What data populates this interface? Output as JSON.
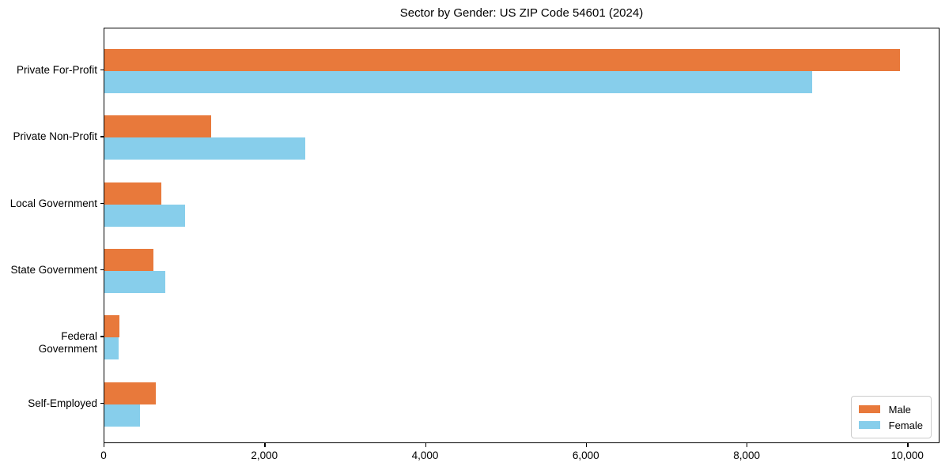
{
  "chart_data": {
    "type": "bar",
    "orientation": "horizontal",
    "title": "Sector by Gender: US ZIP Code 54601 (2024)",
    "categories": [
      "Private For-Profit",
      "Private Non-Profit",
      "Local Government",
      "State Government",
      "Federal Government",
      "Self-Employed"
    ],
    "series": [
      {
        "name": "Male",
        "color": "#e8793b",
        "values": [
          9900,
          1330,
          710,
          610,
          190,
          640
        ]
      },
      {
        "name": "Female",
        "color": "#87ceeb",
        "values": [
          8810,
          2500,
          1000,
          760,
          175,
          440
        ]
      }
    ],
    "xlabel": "",
    "ylabel": "",
    "xlim": [
      0,
      10400
    ],
    "x_ticks": [
      0,
      2000,
      4000,
      6000,
      8000,
      10000
    ],
    "x_tick_labels": [
      "0",
      "2,000",
      "4,000",
      "6,000",
      "8,000",
      "10,000"
    ],
    "legend_position": "lower right",
    "grid": false,
    "spine_color": "#000000",
    "legend_border_color": "#cccccc"
  }
}
